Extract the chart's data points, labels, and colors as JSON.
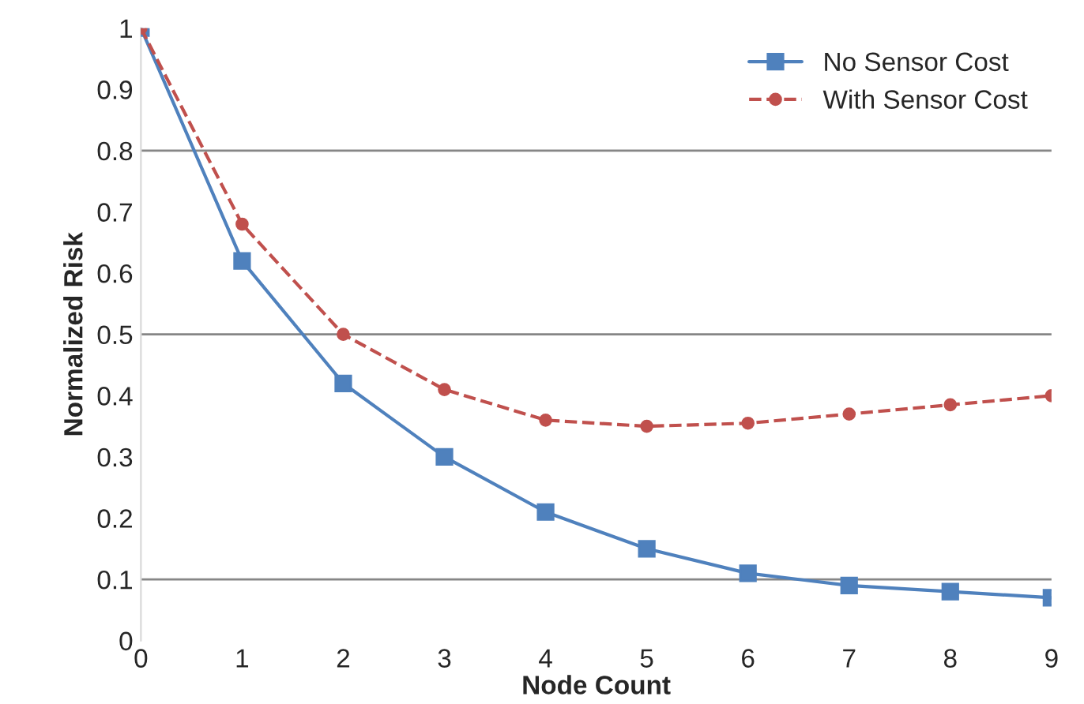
{
  "chart_data": {
    "type": "line",
    "xlabel": "Node Count",
    "ylabel": "Normalized Risk",
    "x": [
      0,
      1,
      2,
      3,
      4,
      5,
      6,
      7,
      8,
      9
    ],
    "series": [
      {
        "name": "No Sensor Cost",
        "color": "#4f81bd",
        "marker": "square",
        "line_style": "solid",
        "values": [
          1,
          0.62,
          0.42,
          0.3,
          0.21,
          0.15,
          0.11,
          0.09,
          0.08,
          0.07
        ]
      },
      {
        "name": "With Sensor Cost",
        "color": "#c0504d",
        "marker": "circle",
        "line_style": "dashed",
        "values": [
          1,
          0.68,
          0.5,
          0.41,
          0.36,
          0.35,
          0.355,
          0.37,
          0.385,
          0.4
        ]
      }
    ],
    "xlim": [
      0,
      9
    ],
    "xticks": [
      0,
      1,
      2,
      3,
      4,
      5,
      6,
      7,
      8,
      9
    ],
    "ylim": [
      0,
      1
    ],
    "yticks": [
      0,
      0.1,
      0.2,
      0.3,
      0.4,
      0.5,
      0.6,
      0.7,
      0.8,
      0.9,
      1
    ],
    "ref_lines": [
      {
        "axis": "y",
        "value": 0.1,
        "color": "#868686"
      },
      {
        "axis": "y",
        "value": 0.5,
        "color": "#868686"
      },
      {
        "axis": "y",
        "value": 0.8,
        "color": "#868686"
      }
    ],
    "grid": false,
    "legend": "top right"
  }
}
